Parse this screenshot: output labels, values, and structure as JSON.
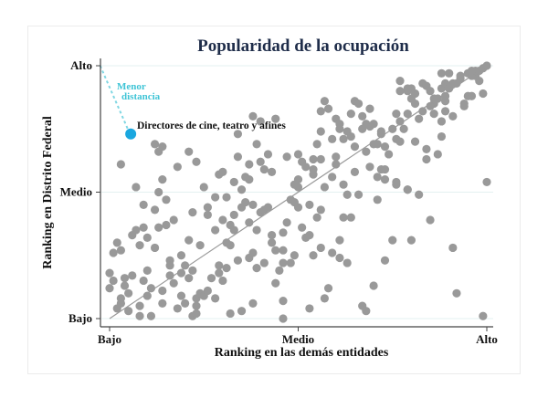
{
  "chart_data": {
    "type": "scatter",
    "title": "Popularidad de la ocupación",
    "xlabel": "Ranking en las demás entidades",
    "ylabel": "Ranking en Distrito Federal",
    "xlim": [
      0,
      100
    ],
    "ylim": [
      0,
      100
    ],
    "x_ticks": [
      {
        "value": 0,
        "label": "Bajo"
      },
      {
        "value": 50,
        "label": "Medio"
      },
      {
        "value": 100,
        "label": "Alto"
      }
    ],
    "y_ticks": [
      {
        "value": 0,
        "label": "Bajo"
      },
      {
        "value": 50,
        "label": "Medio"
      },
      {
        "value": 100,
        "label": "Alto"
      }
    ],
    "grid": "horizontal at y ticks",
    "reference_line": {
      "type": "y=x",
      "color": "#999999"
    },
    "point_color": "#999999",
    "highlight": {
      "label": "Directores de cine, teatro y afines",
      "x": 5.6,
      "y": 73,
      "color": "#1aa7df",
      "annotation": [
        "Menor",
        "distancia"
      ],
      "annotation_color": "#3fc4d6",
      "from": [
        -2.5,
        100
      ]
    },
    "points": [
      [
        7,
        52
      ],
      [
        13,
        50
      ],
      [
        15,
        47
      ],
      [
        9,
        45
      ],
      [
        12,
        43
      ],
      [
        25,
        52
      ],
      [
        28,
        48
      ],
      [
        31,
        48
      ],
      [
        35,
        51
      ],
      [
        26,
        44
      ],
      [
        26,
        41
      ],
      [
        22,
        42
      ],
      [
        17,
        39
      ],
      [
        15,
        37
      ],
      [
        13,
        36
      ],
      [
        9,
        36
      ],
      [
        7,
        35
      ],
      [
        6,
        33
      ],
      [
        10,
        32
      ],
      [
        8,
        29
      ],
      [
        12,
        28
      ],
      [
        2,
        30
      ],
      [
        1,
        26
      ],
      [
        3,
        27
      ],
      [
        21,
        31
      ],
      [
        24,
        29
      ],
      [
        19,
        25
      ],
      [
        16,
        23
      ],
      [
        16,
        21
      ],
      [
        20,
        21
      ],
      [
        22,
        19
      ],
      [
        19,
        18
      ],
      [
        16,
        17
      ],
      [
        17,
        14
      ],
      [
        21,
        16
      ],
      [
        10,
        19
      ],
      [
        9,
        15
      ],
      [
        11,
        12
      ],
      [
        10,
        9
      ],
      [
        6,
        17
      ],
      [
        4,
        16
      ],
      [
        0,
        18
      ],
      [
        1,
        15
      ],
      [
        0,
        12
      ],
      [
        4,
        13
      ],
      [
        5,
        10
      ],
      [
        3,
        8
      ],
      [
        3,
        6
      ],
      [
        2,
        4
      ],
      [
        5,
        3
      ],
      [
        8,
        1
      ],
      [
        8,
        5
      ],
      [
        11,
        1
      ],
      [
        14,
        11
      ],
      [
        14,
        6
      ],
      [
        18,
        4
      ],
      [
        19,
        9
      ],
      [
        20,
        6
      ],
      [
        22,
        1
      ],
      [
        23,
        2
      ],
      [
        23,
        5
      ],
      [
        23,
        8
      ],
      [
        24,
        10
      ],
      [
        25,
        9
      ],
      [
        26,
        11
      ],
      [
        28,
        8
      ],
      [
        27,
        16
      ],
      [
        30,
        15
      ],
      [
        29,
        18
      ],
      [
        29,
        21
      ],
      [
        31,
        20
      ],
      [
        34,
        23
      ],
      [
        32,
        2
      ],
      [
        35,
        3
      ],
      [
        38,
        6
      ],
      [
        37,
        24
      ],
      [
        38,
        26
      ],
      [
        39,
        20
      ],
      [
        41,
        22
      ],
      [
        31,
        30
      ],
      [
        32,
        29
      ],
      [
        28,
        35
      ],
      [
        30,
        39
      ],
      [
        32,
        37
      ],
      [
        33,
        35
      ],
      [
        33,
        41
      ],
      [
        35,
        44
      ],
      [
        36,
        46
      ],
      [
        38,
        45
      ],
      [
        37,
        38
      ],
      [
        39,
        35
      ],
      [
        40,
        42
      ],
      [
        41,
        43
      ],
      [
        42,
        44
      ],
      [
        43,
        30
      ],
      [
        43,
        33
      ],
      [
        44,
        27
      ],
      [
        46,
        34
      ],
      [
        46,
        27
      ],
      [
        47,
        38
      ],
      [
        46,
        22
      ],
      [
        45,
        19
      ],
      [
        44,
        14
      ],
      [
        46,
        7
      ],
      [
        46,
        0
      ],
      [
        48,
        47
      ],
      [
        49,
        46
      ],
      [
        49,
        25
      ],
      [
        48,
        22
      ],
      [
        50,
        52
      ],
      [
        57,
        52
      ],
      [
        62,
        53
      ],
      [
        63,
        49
      ],
      [
        66,
        49
      ],
      [
        71,
        47
      ],
      [
        79,
        51
      ],
      [
        82,
        49
      ],
      [
        76,
        53
      ],
      [
        53,
        45
      ],
      [
        50,
        44
      ],
      [
        56,
        43
      ],
      [
        55,
        40
      ],
      [
        62,
        40
      ],
      [
        64,
        40
      ],
      [
        85,
        39
      ],
      [
        51,
        36
      ],
      [
        52,
        32
      ],
      [
        53,
        33
      ],
      [
        61,
        31
      ],
      [
        75,
        31
      ],
      [
        80,
        31
      ],
      [
        91,
        28
      ],
      [
        56,
        28
      ],
      [
        54,
        25
      ],
      [
        59,
        26
      ],
      [
        61,
        24
      ],
      [
        63,
        22
      ],
      [
        73,
        23
      ],
      [
        70,
        13
      ],
      [
        58,
        12
      ],
      [
        57,
        8
      ],
      [
        53,
        4
      ],
      [
        67,
        5
      ],
      [
        68,
        3
      ],
      [
        92,
        10
      ],
      [
        99,
        1
      ],
      [
        100,
        54
      ],
      [
        50,
        65
      ],
      [
        51,
        62
      ],
      [
        52,
        60
      ],
      [
        54,
        63
      ],
      [
        56,
        63
      ],
      [
        54,
        59
      ],
      [
        54,
        57
      ],
      [
        50,
        55
      ],
      [
        49,
        53
      ],
      [
        60,
        61
      ],
      [
        60,
        64
      ],
      [
        59,
        56
      ],
      [
        65,
        58
      ],
      [
        55,
        69
      ],
      [
        56,
        74
      ],
      [
        59,
        71
      ],
      [
        60,
        79
      ],
      [
        61,
        77
      ],
      [
        61,
        75
      ],
      [
        56,
        82
      ],
      [
        58,
        83
      ],
      [
        57,
        86
      ],
      [
        62,
        71
      ],
      [
        63,
        74
      ],
      [
        64,
        72
      ],
      [
        65,
        86
      ],
      [
        66,
        85
      ],
      [
        69,
        83
      ],
      [
        64,
        81
      ],
      [
        67,
        80
      ],
      [
        68,
        77
      ],
      [
        69,
        76
      ],
      [
        70,
        77
      ],
      [
        67,
        75
      ],
      [
        65,
        68
      ],
      [
        68,
        66
      ],
      [
        70,
        69
      ],
      [
        71,
        69
      ],
      [
        69,
        60
      ],
      [
        72,
        59
      ],
      [
        73,
        59
      ],
      [
        71,
        56
      ],
      [
        73,
        55
      ],
      [
        74,
        65
      ],
      [
        73,
        68
      ],
      [
        72,
        73
      ],
      [
        72,
        74
      ],
      [
        75,
        75
      ],
      [
        76,
        71
      ],
      [
        77,
        70
      ],
      [
        76,
        81
      ],
      [
        77,
        78
      ],
      [
        78,
        75
      ],
      [
        79,
        81
      ],
      [
        76,
        54
      ],
      [
        79,
        51
      ],
      [
        81,
        70
      ],
      [
        84,
        67
      ],
      [
        84,
        63
      ],
      [
        87,
        65
      ],
      [
        82,
        79
      ],
      [
        83,
        82
      ],
      [
        80,
        87
      ],
      [
        81,
        85
      ],
      [
        81,
        89
      ],
      [
        80,
        91
      ],
      [
        77,
        94
      ],
      [
        77,
        90
      ],
      [
        79,
        90
      ],
      [
        79,
        91
      ],
      [
        83,
        93
      ],
      [
        84,
        92
      ],
      [
        85,
        90
      ],
      [
        86,
        87
      ],
      [
        86,
        85
      ],
      [
        87,
        87
      ],
      [
        85,
        84
      ],
      [
        86,
        81
      ],
      [
        89,
        82
      ],
      [
        89,
        86
      ],
      [
        89,
        88
      ],
      [
        88,
        91
      ],
      [
        89,
        93
      ],
      [
        88,
        97
      ],
      [
        90,
        97
      ],
      [
        91,
        80
      ],
      [
        88,
        78
      ],
      [
        88,
        72
      ],
      [
        90,
        91
      ],
      [
        91,
        93
      ],
      [
        92,
        93
      ],
      [
        93,
        95
      ],
      [
        93,
        96
      ],
      [
        94,
        85
      ],
      [
        94,
        84
      ],
      [
        95,
        88
      ],
      [
        96,
        88
      ],
      [
        99,
        89
      ],
      [
        95,
        97
      ],
      [
        96,
        96
      ],
      [
        97,
        96
      ],
      [
        98,
        94
      ],
      [
        97,
        98
      ],
      [
        98,
        98
      ],
      [
        99,
        99
      ],
      [
        100,
        100
      ],
      [
        96,
        98
      ],
      [
        38,
        80
      ],
      [
        40,
        78
      ],
      [
        44,
        79
      ],
      [
        34,
        73
      ],
      [
        39,
        69
      ],
      [
        42,
        65
      ],
      [
        34,
        64
      ],
      [
        40,
        62
      ],
      [
        37,
        61
      ],
      [
        41,
        59
      ],
      [
        43,
        58
      ],
      [
        47,
        64
      ],
      [
        12,
        69
      ],
      [
        14,
        68
      ],
      [
        13,
        66
      ],
      [
        21,
        66
      ],
      [
        23,
        62
      ],
      [
        18,
        60
      ],
      [
        3,
        61
      ],
      [
        14,
        55
      ],
      [
        29,
        57
      ],
      [
        30,
        58
      ],
      [
        33,
        54
      ],
      [
        36,
        56
      ],
      [
        37,
        55
      ]
    ]
  }
}
